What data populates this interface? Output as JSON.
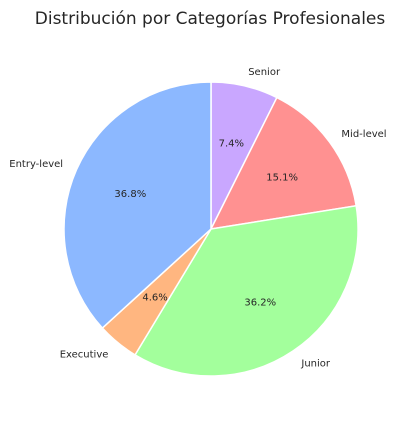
{
  "chart_data": {
    "type": "pie",
    "title": "Distribución por Categorías Profesionales",
    "start_angle_deg": 90,
    "direction": "clockwise",
    "slices": [
      {
        "label": "Senior",
        "value": 7.4,
        "pct_label": "7.4%",
        "color": "#c9a7ff"
      },
      {
        "label": "Mid-level",
        "value": 15.1,
        "pct_label": "15.1%",
        "color": "#ff9191"
      },
      {
        "label": "Junior",
        "value": 36.2,
        "pct_label": "36.2%",
        "color": "#a3ff9c"
      },
      {
        "label": "Executive",
        "value": 4.6,
        "pct_label": "4.6%",
        "color": "#ffb680"
      },
      {
        "label": "Entry-level",
        "value": 36.8,
        "pct_label": "36.8%",
        "color": "#8cb8ff"
      }
    ]
  }
}
